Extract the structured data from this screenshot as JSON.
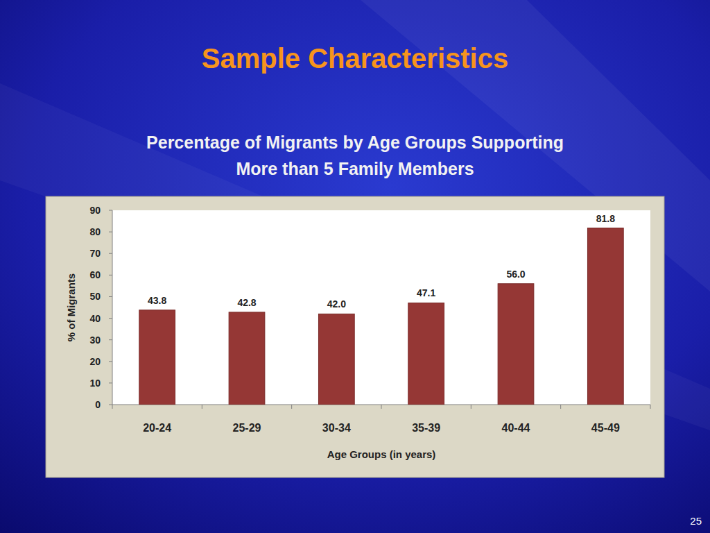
{
  "slide": {
    "heading": "Sample Characteristics",
    "page_number": 25
  },
  "chart_data": {
    "type": "bar",
    "title": "Percentage of Migrants by Age Groups Supporting\nMore than 5 Family Members",
    "x_label": "Age Groups (in years)",
    "y_label": "% of Migrants",
    "categories": [
      "20-24",
      "25-29",
      "30-34",
      "35-39",
      "40-44",
      "45-49"
    ],
    "values": [
      43.8,
      42.8,
      42.0,
      47.1,
      56.0,
      81.8
    ],
    "value_labels": [
      "43.8",
      "42.8",
      "42.0",
      "47.1",
      "56.0",
      "81.8"
    ],
    "color": "#953735",
    "ylim": [
      0,
      90
    ],
    "yticks": [
      0,
      10,
      20,
      30,
      40,
      50,
      60,
      70,
      80,
      90
    ],
    "grid": false,
    "data_labels": true
  }
}
